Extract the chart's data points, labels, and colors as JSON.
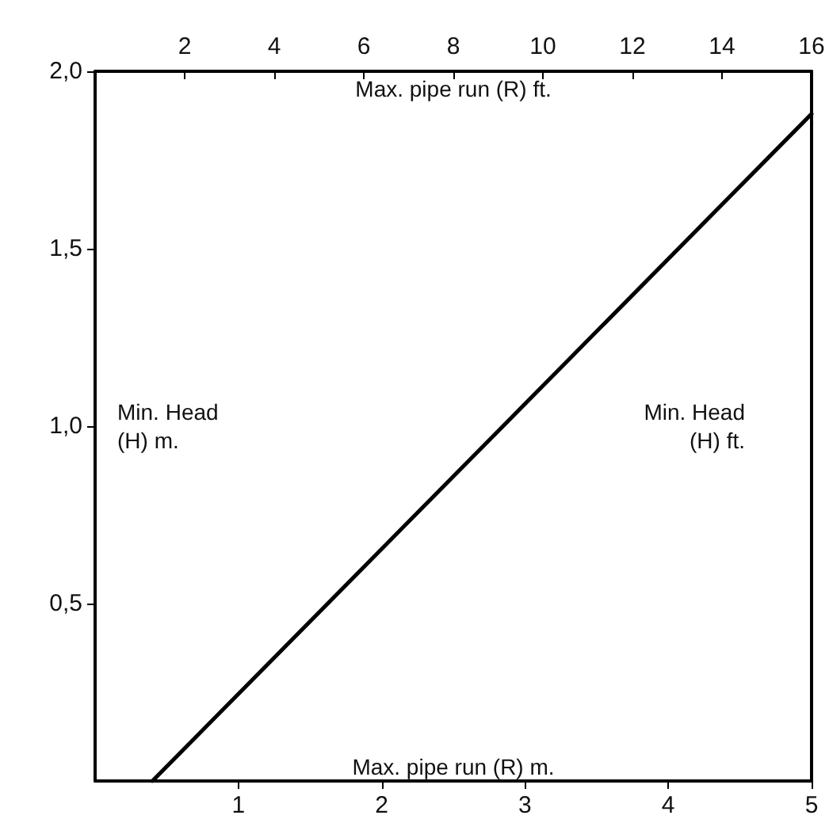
{
  "chart_data": {
    "type": "line",
    "xlabel": "Max. pipe run (R) m.",
    "x2label": "Max. pipe run (R) ft.",
    "ylabel": "Min. Head\n(H) m.",
    "y2label": "Min. Head\n(H) ft.",
    "x": [
      0.4,
      5
    ],
    "series": [
      {
        "color": "#000000",
        "values": [
          0,
          1.88
        ]
      }
    ],
    "xlim": [
      0,
      5
    ],
    "xticks": [
      1,
      2,
      3,
      4,
      5
    ],
    "x2lim": [
      0,
      16
    ],
    "x2ticks": [
      2,
      4,
      6,
      8,
      10,
      12,
      14,
      16
    ],
    "ylim": [
      0,
      2
    ],
    "yticks": [
      {
        "value": 0.5,
        "label": "0,5"
      },
      {
        "value": 1,
        "label": "1,0"
      },
      {
        "value": 1.5,
        "label": "1,5"
      },
      {
        "value": 2,
        "label": "2,0"
      }
    ],
    "grid": false,
    "marker": "none",
    "line_style": "solid"
  }
}
